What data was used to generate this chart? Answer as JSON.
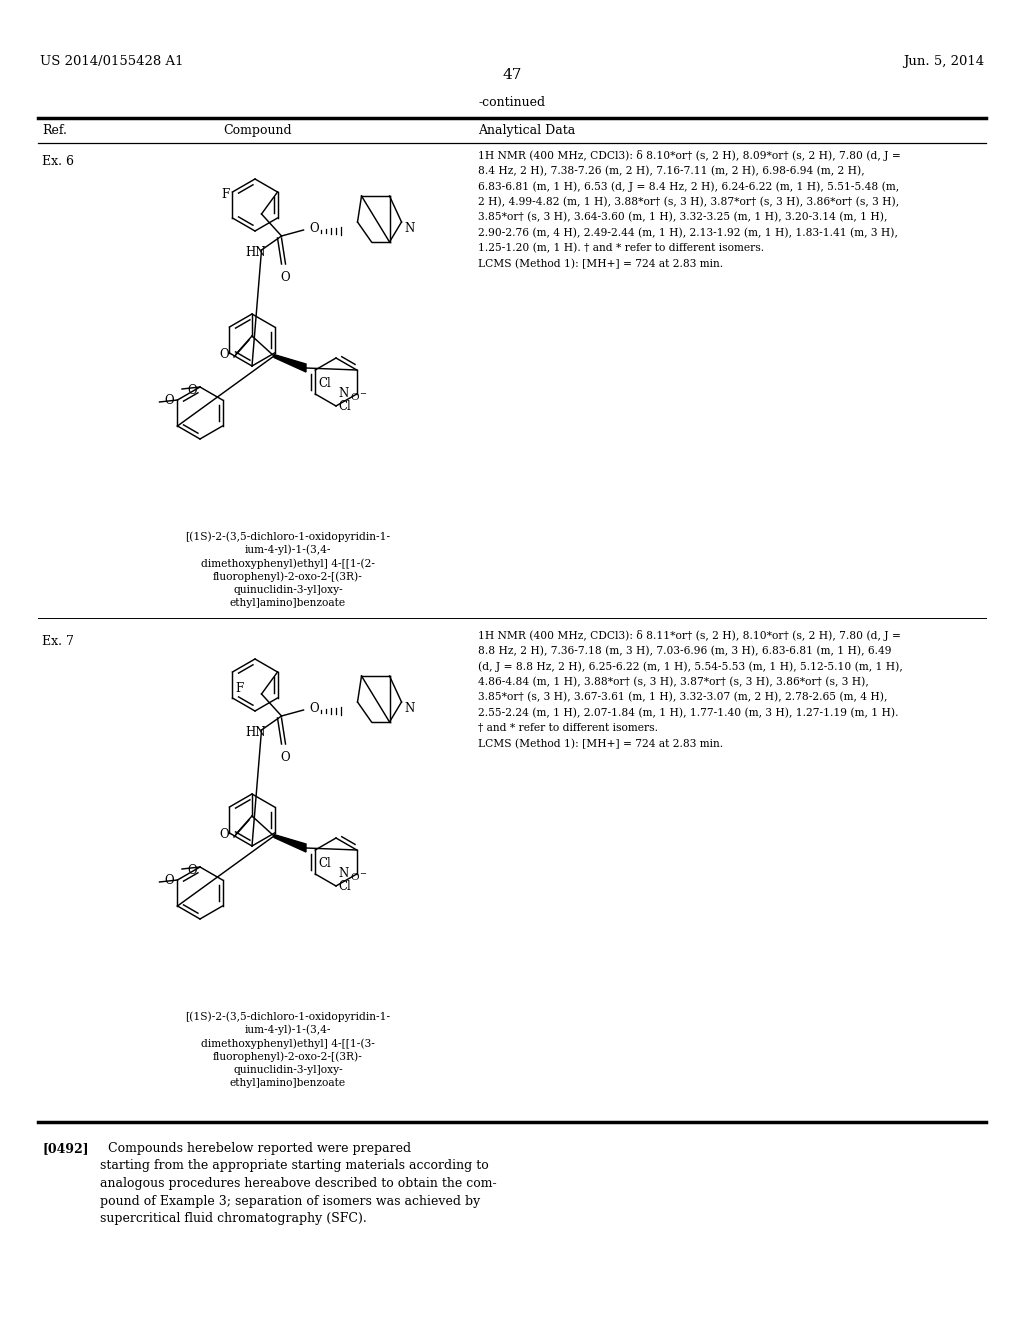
{
  "background_color": "#ffffff",
  "page_number": "47",
  "header_left": "US 2014/0155428 A1",
  "header_right": "Jun. 5, 2014",
  "continued_label": "-continued",
  "table_headers": [
    "Ref.",
    "Compound",
    "Analytical Data"
  ],
  "ex6_ref": "Ex. 6",
  "ex6_name_lines": [
    "[(1S)-2-(3,5-dichloro-1-oxidopyridin-1-",
    "ium-4-yl)-1-(3,4-",
    "dimethoxyphenyl)ethyl] 4-[[1-(2-",
    "fluorophenyl)-2-oxo-2-[(3R)-",
    "quinuclidin-3-yl]oxy-",
    "ethyl]amino]benzoate"
  ],
  "ex6_data_lines": [
    "1H NMR (400 MHz, CDCl3): δ 8.10*or† (s, 2 H), 8.09*or† (s, 2 H), 7.80 (d, J =",
    "8.4 Hz, 2 H), 7.38-7.26 (m, 2 H), 7.16-7.11 (m, 2 H), 6.98-6.94 (m, 2 H),",
    "6.83-6.81 (m, 1 H), 6.53 (d, J = 8.4 Hz, 2 H), 6.24-6.22 (m, 1 H), 5.51-5.48 (m,",
    "2 H), 4.99-4.82 (m, 1 H), 3.88*or† (s, 3 H), 3.87*or† (s, 3 H), 3.86*or† (s, 3 H),",
    "3.85*or† (s, 3 H), 3.64-3.60 (m, 1 H), 3.32-3.25 (m, 1 H), 3.20-3.14 (m, 1 H),",
    "2.90-2.76 (m, 4 H), 2.49-2.44 (m, 1 H), 2.13-1.92 (m, 1 H), 1.83-1.41 (m, 3 H),",
    "1.25-1.20 (m, 1 H). † and * refer to different isomers.",
    "LCMS (Method 1): [MH+] = 724 at 2.83 min."
  ],
  "ex7_ref": "Ex. 7",
  "ex7_name_lines": [
    "[(1S)-2-(3,5-dichloro-1-oxidopyridin-1-",
    "ium-4-yl)-1-(3,4-",
    "dimethoxyphenyl)ethyl] 4-[[1-(3-",
    "fluorophenyl)-2-oxo-2-[(3R)-",
    "quinuclidin-3-yl]oxy-",
    "ethyl]amino]benzoate"
  ],
  "ex7_data_lines": [
    "1H NMR (400 MHz, CDCl3): δ 8.11*or† (s, 2 H), 8.10*or† (s, 2 H), 7.80 (d, J =",
    "8.8 Hz, 2 H), 7.36-7.18 (m, 3 H), 7.03-6.96 (m, 3 H), 6.83-6.81 (m, 1 H), 6.49",
    "(d, J = 8.8 Hz, 2 H), 6.25-6.22 (m, 1 H), 5.54-5.53 (m, 1 H), 5.12-5.10 (m, 1 H),",
    "4.86-4.84 (m, 1 H), 3.88*or† (s, 3 H), 3.87*or† (s, 3 H), 3.86*or† (s, 3 H),",
    "3.85*or† (s, 3 H), 3.67-3.61 (m, 1 H), 3.32-3.07 (m, 2 H), 2.78-2.65 (m, 4 H),",
    "2.55-2.24 (m, 1 H), 2.07-1.84 (m, 1 H), 1.77-1.40 (m, 3 H), 1.27-1.19 (m, 1 H).",
    "† and * refer to different isomers.",
    "LCMS (Method 1): [MH+] = 724 at 2.83 min."
  ],
  "footer_para_num": "[0492]",
  "footer_text": "Compounds herebelow reported were prepared starting from the appropriate starting materials according to analogous procedures hereabove described to obtain the com-pound of Example 3; separation of isomers was achieved by supercritical fluid chromatography (SFC)."
}
